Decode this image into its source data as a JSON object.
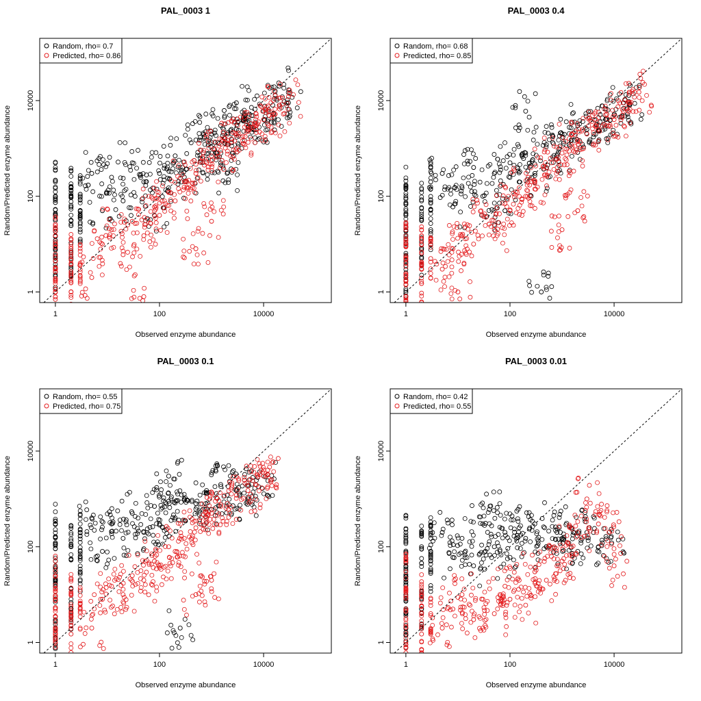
{
  "chart_data": [
    {
      "type": "scatter",
      "title": "PAL_0003 1",
      "xlabel": "Observed enzyme abundance",
      "ylabel": "Random/Predicted enzyme abundance",
      "xscale": "log",
      "yscale": "log",
      "xlim": [
        0.5,
        200000
      ],
      "ylim": [
        0.6,
        200000
      ],
      "xticks": [
        1,
        100,
        10000
      ],
      "xtick_labels": [
        "1",
        "100",
        "10000"
      ],
      "yticks": [
        1,
        100,
        10000
      ],
      "ytick_labels": [
        "1",
        "100",
        "10000"
      ],
      "diagonal": "y = x (dotted)",
      "legend_position": "top-left",
      "series": [
        {
          "name": "Random, rho= 0.7",
          "color": "#000000",
          "rho": 0.7,
          "x": [
            1,
            1,
            1,
            1,
            2,
            2,
            2,
            3,
            3,
            5,
            8,
            12,
            20,
            30,
            50,
            80,
            100,
            150,
            200,
            300,
            500,
            800,
            1000,
            1500,
            2000,
            3000,
            4000,
            5000,
            7000,
            10000,
            15000,
            20000,
            30000,
            3000,
            2000,
            1500,
            1000
          ],
          "y": [
            3,
            12,
            40,
            200,
            5,
            60,
            150,
            20,
            100,
            300,
            50,
            250,
            80,
            500,
            200,
            40,
            300,
            150,
            700,
            250,
            1500,
            600,
            2000,
            3000,
            1200,
            2500,
            4000,
            2800,
            3500,
            6000,
            8000,
            20000,
            9000,
            9000,
            300,
            500,
            800
          ]
        },
        {
          "name": "Predicted, rho= 0.86",
          "color": "#e31a1c",
          "rho": 0.86,
          "x": [
            1,
            1,
            1,
            2,
            2,
            3,
            5,
            8,
            12,
            20,
            30,
            50,
            80,
            100,
            150,
            200,
            300,
            500,
            800,
            1000,
            1500,
            2000,
            3000,
            4000,
            5000,
            7000,
            10000,
            15000,
            20000,
            30000,
            500,
            1000,
            50
          ],
          "y": [
            0.7,
            3,
            15,
            1,
            8,
            4,
            2,
            10,
            20,
            6,
            30,
            15,
            60,
            40,
            120,
            80,
            200,
            300,
            500,
            700,
            900,
            1500,
            2000,
            1800,
            2500,
            3000,
            4000,
            5000,
            8000,
            12000,
            8,
            30,
            0.8
          ]
        }
      ]
    },
    {
      "type": "scatter",
      "title": "PAL_0003 0.4",
      "xlabel": "Observed enzyme abundance",
      "ylabel": "Random/Predicted enzyme abundance",
      "xscale": "log",
      "yscale": "log",
      "xlim": [
        0.5,
        200000
      ],
      "ylim": [
        0.6,
        200000
      ],
      "xticks": [
        1,
        100,
        10000
      ],
      "xtick_labels": [
        "1",
        "100",
        "10000"
      ],
      "yticks": [
        1,
        100,
        10000
      ],
      "ytick_labels": [
        "1",
        "100",
        "10000"
      ],
      "diagonal": "y = x (dotted)",
      "legend_position": "top-left",
      "series": [
        {
          "name": "Random, rho= 0.68",
          "color": "#000000",
          "rho": 0.68,
          "x": [
            1,
            1,
            1,
            1,
            2,
            2,
            3,
            3,
            5,
            8,
            12,
            20,
            30,
            50,
            80,
            100,
            150,
            200,
            300,
            500,
            800,
            1000,
            1500,
            2000,
            3000,
            5000,
            7000,
            10000,
            15000,
            20000,
            200,
            400
          ],
          "y": [
            2,
            10,
            40,
            150,
            5,
            80,
            20,
            200,
            300,
            60,
            150,
            400,
            100,
            300,
            50,
            500,
            200,
            800,
            300,
            1200,
            700,
            2000,
            1500,
            3000,
            2500,
            3000,
            4000,
            5000,
            9000,
            8000,
            6000,
            1
          ]
        },
        {
          "name": "Predicted, rho= 0.85",
          "color": "#e31a1c",
          "rho": 0.85,
          "x": [
            1,
            1,
            1,
            2,
            2,
            3,
            5,
            8,
            12,
            20,
            30,
            50,
            80,
            100,
            150,
            200,
            300,
            500,
            800,
            1000,
            1500,
            2000,
            3000,
            5000,
            7000,
            10000,
            15000,
            20000,
            30000,
            1000,
            2000,
            10
          ],
          "y": [
            0.8,
            4,
            20,
            1.5,
            10,
            5,
            3,
            8,
            15,
            10,
            40,
            20,
            70,
            50,
            150,
            100,
            200,
            400,
            600,
            800,
            1200,
            1500,
            2000,
            2500,
            3000,
            4000,
            6000,
            9000,
            15000,
            20,
            50,
            1
          ]
        }
      ]
    },
    {
      "type": "scatter",
      "title": "PAL_0003 0.1",
      "xlabel": "Observed enzyme abundance",
      "ylabel": "Random/Predicted enzyme abundance",
      "xscale": "log",
      "yscale": "log",
      "xlim": [
        0.5,
        200000
      ],
      "ylim": [
        0.6,
        200000
      ],
      "xticks": [
        1,
        100,
        10000
      ],
      "xtick_labels": [
        "1",
        "100",
        "10000"
      ],
      "yticks": [
        1,
        100,
        10000
      ],
      "ytick_labels": [
        "1",
        "100",
        "10000"
      ],
      "diagonal": "y = x (dotted)",
      "legend_position": "top-left",
      "series": [
        {
          "name": "Random, rho= 0.55",
          "color": "#000000",
          "rho": 0.55,
          "x": [
            1,
            1,
            1,
            1,
            2,
            2,
            3,
            3,
            5,
            8,
            12,
            20,
            30,
            50,
            80,
            100,
            150,
            200,
            300,
            500,
            800,
            1000,
            1500,
            2000,
            3000,
            5000,
            7000,
            10000,
            150,
            250
          ],
          "y": [
            2,
            15,
            50,
            300,
            5,
            100,
            30,
            200,
            400,
            80,
            300,
            150,
            500,
            200,
            700,
            300,
            900,
            400,
            1000,
            800,
            1500,
            600,
            2000,
            1200,
            1500,
            1000,
            2000,
            3000,
            3000,
            2
          ]
        },
        {
          "name": "Predicted, rho= 0.75",
          "color": "#e31a1c",
          "rho": 0.75,
          "x": [
            1,
            1,
            1,
            2,
            2,
            3,
            5,
            8,
            12,
            20,
            30,
            50,
            80,
            100,
            150,
            200,
            300,
            500,
            800,
            1000,
            1500,
            2000,
            3000,
            5000,
            7000,
            10000,
            12000,
            500,
            1000
          ],
          "y": [
            0.8,
            5,
            25,
            1.5,
            10,
            5,
            2,
            8,
            15,
            10,
            25,
            20,
            50,
            40,
            100,
            80,
            150,
            250,
            400,
            500,
            700,
            800,
            1200,
            1500,
            2000,
            3000,
            4000,
            10,
            20
          ]
        }
      ]
    },
    {
      "type": "scatter",
      "title": "PAL_0003 0.01",
      "xlabel": "Observed enzyme abundance",
      "ylabel": "Random/Predicted enzyme abundance",
      "xscale": "log",
      "yscale": "log",
      "xlim": [
        0.5,
        200000
      ],
      "ylim": [
        0.6,
        200000
      ],
      "xticks": [
        1,
        100,
        10000
      ],
      "xtick_labels": [
        "1",
        "100",
        "10000"
      ],
      "yticks": [
        1,
        100,
        10000
      ],
      "ytick_labels": [
        "1",
        "100",
        "10000"
      ],
      "diagonal": "y = x (dotted)",
      "legend_position": "top-left",
      "series": [
        {
          "name": "Random, rho= 0.42",
          "color": "#000000",
          "rho": 0.42,
          "x": [
            1,
            1,
            1,
            1,
            2,
            2,
            3,
            3,
            5,
            8,
            12,
            20,
            30,
            50,
            80,
            100,
            150,
            200,
            300,
            500,
            800,
            1000,
            1500,
            2000,
            3000,
            5000,
            9000,
            40
          ],
          "y": [
            2,
            10,
            40,
            200,
            5,
            100,
            30,
            150,
            200,
            60,
            150,
            40,
            300,
            100,
            200,
            60,
            250,
            150,
            300,
            100,
            200,
            150,
            250,
            80,
            200,
            100,
            120,
            600
          ]
        },
        {
          "name": "Predicted, rho= 0.55",
          "color": "#e31a1c",
          "rho": 0.55,
          "x": [
            1,
            1,
            1,
            2,
            2,
            3,
            5,
            8,
            12,
            20,
            30,
            50,
            80,
            100,
            150,
            200,
            300,
            500,
            800,
            1000,
            1500,
            2000,
            3000,
            5000,
            8000,
            10000
          ],
          "y": [
            0.8,
            5,
            30,
            1.5,
            10,
            4,
            2,
            5,
            10,
            3,
            8,
            4,
            15,
            8,
            20,
            6,
            30,
            20,
            40,
            50,
            100,
            200,
            1000,
            300,
            200,
            40
          ]
        }
      ]
    }
  ]
}
